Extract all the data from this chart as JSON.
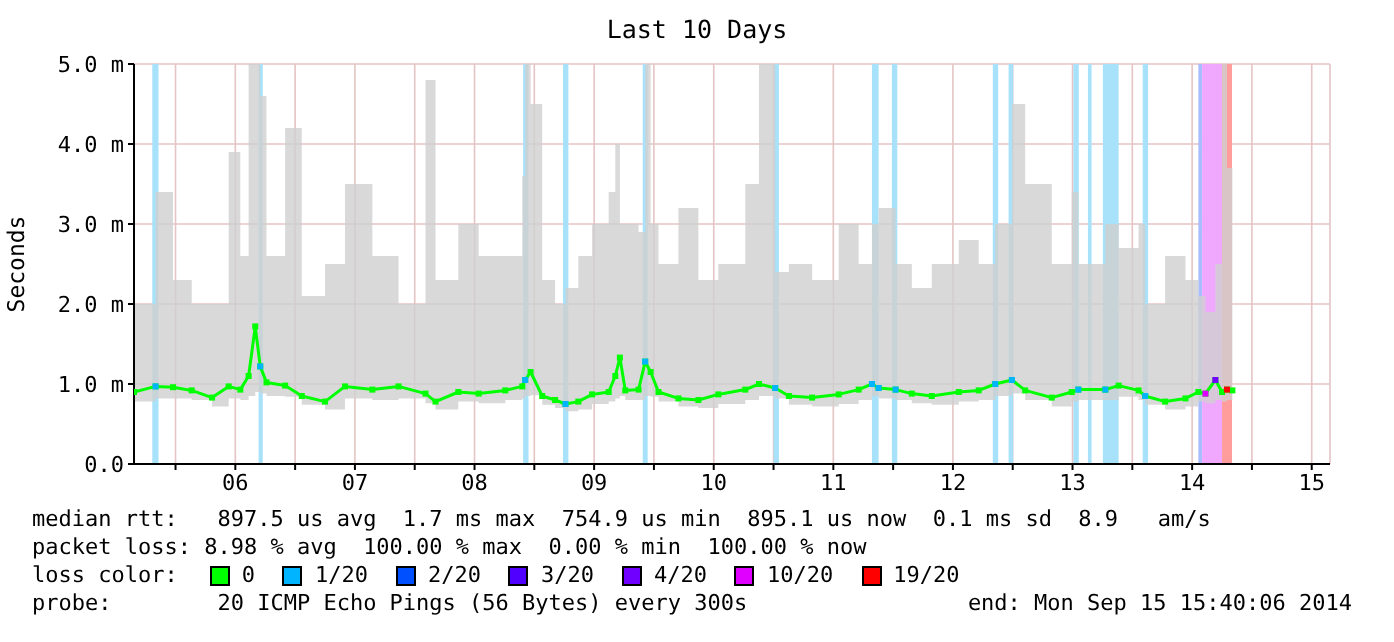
{
  "chart_data": {
    "type": "line",
    "title": "Last 10 Days",
    "ylabel": "Seconds",
    "legend_title": "loss color:",
    "annotations": [
      "median rtt:   897.5 us avg  1.7 ms max  754.9 us min  895.1 us now  0.1 ms sd  8.9   am/s",
      "packet loss: 8.98 % avg  100.00 % max  0.00 % min  100.00 % now",
      "probe:        20 ICMP Echo Pings (56 Bytes) every 300s",
      "end: Mon Sep 15 15:40:06 2014"
    ],
    "xlim": [
      "2014-09-05T15:40",
      "2014-09-15T15:40"
    ],
    "xticks": [
      {
        "value": "2014-09-06T00:00",
        "label": null
      },
      {
        "value": "2014-09-06T12:00",
        "label": "06"
      },
      {
        "value": "2014-09-07T00:00",
        "label": null
      },
      {
        "value": "2014-09-07T12:00",
        "label": "07"
      },
      {
        "value": "2014-09-08T00:00",
        "label": null
      },
      {
        "value": "2014-09-08T12:00",
        "label": "08"
      },
      {
        "value": "2014-09-09T00:00",
        "label": null
      },
      {
        "value": "2014-09-09T12:00",
        "label": "09"
      },
      {
        "value": "2014-09-10T00:00",
        "label": null
      },
      {
        "value": "2014-09-10T12:00",
        "label": "10"
      },
      {
        "value": "2014-09-11T00:00",
        "label": null
      },
      {
        "value": "2014-09-11T12:00",
        "label": "11"
      },
      {
        "value": "2014-09-12T00:00",
        "label": null
      },
      {
        "value": "2014-09-12T12:00",
        "label": "12"
      },
      {
        "value": "2014-09-13T00:00",
        "label": null
      },
      {
        "value": "2014-09-13T12:00",
        "label": "13"
      },
      {
        "value": "2014-09-14T00:00",
        "label": null
      },
      {
        "value": "2014-09-14T12:00",
        "label": "14"
      },
      {
        "value": "2014-09-15T00:00",
        "label": null
      },
      {
        "value": "2014-09-15T12:00",
        "label": "15"
      }
    ],
    "ylim": [
      0,
      5
    ],
    "yticks": [
      {
        "value": 0,
        "label": "0.0"
      },
      {
        "value": 1,
        "label": "1.0 m"
      },
      {
        "value": 2,
        "label": "2.0 m"
      },
      {
        "value": 3,
        "label": "3.0 m"
      },
      {
        "value": 4,
        "label": "4.0 m"
      },
      {
        "value": 5,
        "label": "5.0 m"
      }
    ],
    "grid": true,
    "legend": "bottom",
    "marker": "square",
    "line_style": "solid",
    "series": [
      {
        "name": "0",
        "color": "#00ff00",
        "x": [
          "2014-09-05T15:40",
          "2014-09-05T20:00",
          "2014-09-05T23:30",
          "2014-09-06T03:15",
          "2014-09-06T07:20",
          "2014-09-06T10:40",
          "2014-09-06T13:00",
          "2014-09-06T14:40",
          "2014-09-06T16:00",
          "2014-09-06T17:00",
          "2014-09-06T18:15",
          "2014-09-06T22:00",
          "2014-09-07T01:20",
          "2014-09-07T06:00",
          "2014-09-07T10:00",
          "2014-09-07T15:30",
          "2014-09-07T20:45",
          "2014-09-08T02:10",
          "2014-09-08T04:10",
          "2014-09-08T08:45",
          "2014-09-08T12:50",
          "2014-09-08T18:10",
          "2014-09-08T21:35",
          "2014-09-08T22:10",
          "2014-09-08T23:15",
          "2014-09-09T01:35",
          "2014-09-09T04:10",
          "2014-09-09T06:15",
          "2014-09-09T08:50",
          "2014-09-09T11:35",
          "2014-09-09T14:55",
          "2014-09-09T16:15",
          "2014-09-09T17:10",
          "2014-09-09T18:15",
          "2014-09-09T20:55",
          "2014-09-09T22:15",
          "2014-09-09T23:20",
          "2014-09-10T00:55",
          "2014-09-10T04:55",
          "2014-09-10T08:55",
          "2014-09-10T12:55",
          "2014-09-10T18:20",
          "2014-09-10T21:05",
          "2014-09-11T00:20",
          "2014-09-11T03:05",
          "2014-09-11T07:45",
          "2014-09-11T13:05",
          "2014-09-11T17:05",
          "2014-09-11T19:45",
          "2014-09-11T21:05",
          "2014-09-12T00:30",
          "2014-09-12T03:45",
          "2014-09-12T07:45",
          "2014-09-12T13:10",
          "2014-09-12T17:10",
          "2014-09-12T20:30",
          "2014-09-12T23:50",
          "2014-09-13T02:30",
          "2014-09-13T07:50",
          "2014-09-13T11:50",
          "2014-09-13T13:10",
          "2014-09-13T18:35",
          "2014-09-13T21:15",
          "2014-09-14T01:15",
          "2014-09-14T02:35",
          "2014-09-14T06:35",
          "2014-09-14T10:40",
          "2014-09-14T13:15",
          "2014-09-14T14:40",
          "2014-09-14T16:40",
          "2014-09-14T18:00",
          "2014-09-14T19:00",
          "2014-09-14T20:05"
        ],
        "values": [
          0.9,
          0.97,
          0.96,
          0.92,
          0.83,
          0.97,
          0.93,
          1.1,
          1.72,
          1.22,
          1.02,
          0.98,
          0.85,
          0.78,
          0.97,
          0.93,
          0.97,
          0.88,
          0.78,
          0.9,
          0.88,
          0.92,
          0.97,
          1.05,
          1.15,
          0.85,
          0.8,
          0.75,
          0.78,
          0.87,
          0.9,
          1.1,
          1.33,
          0.92,
          0.93,
          1.28,
          1.15,
          0.9,
          0.82,
          0.8,
          0.87,
          0.93,
          1.0,
          0.95,
          0.85,
          0.83,
          0.87,
          0.93,
          1.0,
          0.95,
          0.93,
          0.88,
          0.85,
          0.9,
          0.92,
          1.0,
          1.05,
          0.92,
          0.83,
          0.9,
          0.93,
          0.93,
          0.98,
          0.92,
          0.85,
          0.78,
          0.82,
          0.9,
          0.88,
          1.05,
          0.9,
          0.93,
          0.92
        ],
        "lower": [
          0.78,
          0.82,
          0.82,
          0.8,
          0.72,
          0.82,
          0.8,
          0.85,
          0.9,
          0.88,
          0.85,
          0.84,
          0.74,
          0.68,
          0.82,
          0.8,
          0.82,
          0.76,
          0.68,
          0.78,
          0.76,
          0.8,
          0.82,
          0.85,
          0.86,
          0.74,
          0.7,
          0.66,
          0.68,
          0.75,
          0.78,
          0.82,
          0.85,
          0.8,
          0.8,
          0.85,
          0.84,
          0.78,
          0.72,
          0.7,
          0.75,
          0.8,
          0.85,
          0.82,
          0.74,
          0.72,
          0.75,
          0.8,
          0.85,
          0.82,
          0.8,
          0.76,
          0.74,
          0.78,
          0.8,
          0.85,
          0.88,
          0.8,
          0.72,
          0.78,
          0.8,
          0.8,
          0.84,
          0.8,
          0.74,
          0.68,
          0.72,
          0.78,
          0.76,
          0.8,
          0.78,
          0.8,
          0.8
        ],
        "upper": [
          2.0,
          3.4,
          2.3,
          2.0,
          2.0,
          3.9,
          2.6,
          5.0,
          5.0,
          4.6,
          2.6,
          4.2,
          2.1,
          2.5,
          3.5,
          2.6,
          2.0,
          4.8,
          2.3,
          3.0,
          2.6,
          2.6,
          3.6,
          5.0,
          4.5,
          2.3,
          2.0,
          2.2,
          2.6,
          3.0,
          3.4,
          4.0,
          3.0,
          3.0,
          2.9,
          5.0,
          3.0,
          2.5,
          3.2,
          2.3,
          2.5,
          3.5,
          5.0,
          2.4,
          2.5,
          2.3,
          3.0,
          2.5,
          3.0,
          3.2,
          2.5,
          2.2,
          2.5,
          2.8,
          2.5,
          3.0,
          4.5,
          3.5,
          2.5,
          3.4,
          2.5,
          3.0,
          2.7,
          3.0,
          2.0,
          2.6,
          2.3,
          2.1,
          1.9,
          2.5,
          5.0,
          3.7,
          3.7
        ]
      },
      {
        "name": "1/20",
        "type": "scatter",
        "color": "#00b4ff",
        "x": [
          "2014-09-05T20:00",
          "2014-09-06T17:00",
          "2014-09-08T22:10",
          "2014-09-09T06:15",
          "2014-09-09T22:15",
          "2014-09-11T00:20",
          "2014-09-11T19:45",
          "2014-09-11T21:05",
          "2014-09-12T00:30",
          "2014-09-12T20:30",
          "2014-09-12T23:50",
          "2014-09-13T13:10",
          "2014-09-13T18:35",
          "2014-09-14T02:35"
        ],
        "values": [
          0.97,
          1.22,
          1.05,
          0.75,
          1.28,
          0.95,
          1.0,
          0.95,
          0.93,
          1.0,
          1.05,
          0.93,
          0.93,
          0.85
        ]
      },
      {
        "name": "2/20",
        "type": "scatter",
        "color": "#0050ff"
      },
      {
        "name": "3/20",
        "type": "scatter",
        "color": "#5000ff"
      },
      {
        "name": "4/20",
        "type": "scatter",
        "color": "#7000ff",
        "x": [
          "2014-09-14T16:40"
        ],
        "values": [
          1.05
        ]
      },
      {
        "name": "10/20",
        "type": "scatter",
        "color": "#e000ff",
        "x": [
          "2014-09-14T14:40"
        ],
        "values": [
          0.88
        ]
      },
      {
        "name": "19/20",
        "type": "scatter",
        "color": "#ff0000",
        "x": [
          "2014-09-14T19:00"
        ],
        "values": [
          0.93
        ]
      }
    ],
    "bands": [
      {
        "axis": "x",
        "from": "2014-09-05T19:20",
        "to": "2014-09-05T20:35",
        "color": "#a8e2fa"
      },
      {
        "axis": "x",
        "from": "2014-09-06T16:40",
        "to": "2014-09-06T17:30",
        "color": "#a8e2fa"
      },
      {
        "axis": "x",
        "from": "2014-09-08T21:45",
        "to": "2014-09-08T22:50",
        "color": "#a8e2fa"
      },
      {
        "axis": "x",
        "from": "2014-09-09T05:45",
        "to": "2014-09-09T06:50",
        "color": "#a8e2fa"
      },
      {
        "axis": "x",
        "from": "2014-09-09T21:45",
        "to": "2014-09-09T22:45",
        "color": "#a8e2fa"
      },
      {
        "axis": "x",
        "from": "2014-09-11T00:00",
        "to": "2014-09-11T01:05",
        "color": "#a8e2fa"
      },
      {
        "axis": "x",
        "from": "2014-09-11T19:45",
        "to": "2014-09-11T21:05",
        "color": "#a8e2fa"
      },
      {
        "axis": "x",
        "from": "2014-09-11T23:45",
        "to": "2014-09-12T00:50",
        "color": "#a8e2fa"
      },
      {
        "axis": "x",
        "from": "2014-09-12T20:00",
        "to": "2014-09-12T21:05",
        "color": "#a8e2fa"
      },
      {
        "axis": "x",
        "from": "2014-09-12T23:10",
        "to": "2014-09-13T00:05",
        "color": "#a8e2fa"
      },
      {
        "axis": "x",
        "from": "2014-09-13T12:10",
        "to": "2014-09-13T13:15",
        "color": "#a8e2fa"
      },
      {
        "axis": "x",
        "from": "2014-09-13T15:05",
        "to": "2014-09-13T15:50",
        "color": "#a8e2fa"
      },
      {
        "axis": "x",
        "from": "2014-09-13T18:05",
        "to": "2014-09-13T21:15",
        "color": "#a8e2fa"
      },
      {
        "axis": "x",
        "from": "2014-09-14T02:05",
        "to": "2014-09-14T03:10",
        "color": "#a8e2fa"
      },
      {
        "axis": "x",
        "from": "2014-09-14T13:15",
        "to": "2014-09-14T14:00",
        "color": "#a8bcff"
      },
      {
        "axis": "x",
        "from": "2014-09-14T14:00",
        "to": "2014-09-14T18:00",
        "color": "#f0a8ff"
      },
      {
        "axis": "x",
        "from": "2014-09-14T18:00",
        "to": "2014-09-14T20:00",
        "color": "#ff9c9c"
      }
    ]
  }
}
